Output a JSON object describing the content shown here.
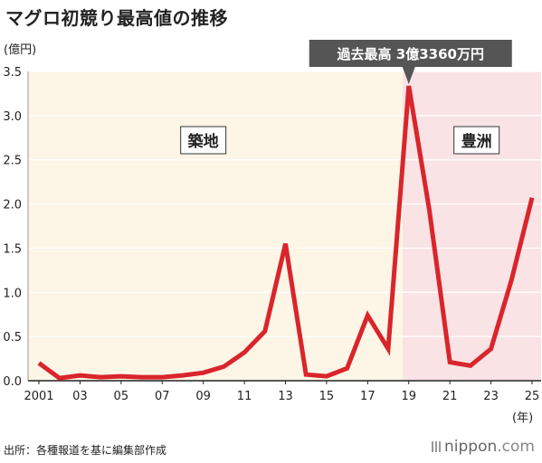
{
  "title": "マグロ初競り最高値の推移",
  "source": "出所：各種報道を基に編集部作成",
  "brand": {
    "name": "nippon",
    "suffix": ".com"
  },
  "colors": {
    "line": "#d9252b",
    "tsukiji_bg": "#fdf6e6",
    "toyosu_bg": "#f9e3e4",
    "label_box_bg": "#ffffff",
    "label_box_border": "#333333",
    "callout_bg": "#555555",
    "axis": "#222222"
  },
  "chart_data": {
    "type": "line",
    "ylabel": "(億円)",
    "xlabel": "(年)",
    "ylim": [
      0,
      3.5
    ],
    "y_ticks": [
      "0.0",
      "0.5",
      "1.0",
      "1.5",
      "2.0",
      "2.5",
      "3.0",
      "3.5"
    ],
    "y_tick_values": [
      0,
      0.5,
      1.0,
      1.5,
      2.0,
      2.5,
      3.0,
      3.5
    ],
    "x_tick_labels": [
      "2001",
      "03",
      "05",
      "07",
      "09",
      "11",
      "13",
      "15",
      "17",
      "19",
      "21",
      "23",
      "25"
    ],
    "x_tick_years": [
      2001,
      2003,
      2005,
      2007,
      2009,
      2011,
      2013,
      2015,
      2017,
      2019,
      2021,
      2023,
      2025
    ],
    "xlim": [
      2001,
      2025
    ],
    "x": [
      2001,
      2002,
      2003,
      2004,
      2005,
      2006,
      2007,
      2008,
      2009,
      2010,
      2011,
      2012,
      2013,
      2014,
      2015,
      2016,
      2017,
      2018,
      2019,
      2020,
      2021,
      2022,
      2023,
      2024,
      2025
    ],
    "series": [
      {
        "values": [
          0.2,
          0.03,
          0.06,
          0.04,
          0.05,
          0.04,
          0.04,
          0.06,
          0.09,
          0.16,
          0.32,
          0.56,
          1.55,
          0.07,
          0.05,
          0.14,
          0.74,
          0.36,
          3.336,
          1.93,
          0.21,
          0.17,
          0.36,
          1.14,
          2.07
        ]
      }
    ],
    "regions": [
      {
        "label": "築地",
        "from": 2001,
        "to": 2018
      },
      {
        "label": "豊洲",
        "from": 2018,
        "to": 2025
      }
    ],
    "annotation": {
      "text": "過去最高 3億3360万円",
      "x": 2019,
      "y": 3.336
    }
  }
}
